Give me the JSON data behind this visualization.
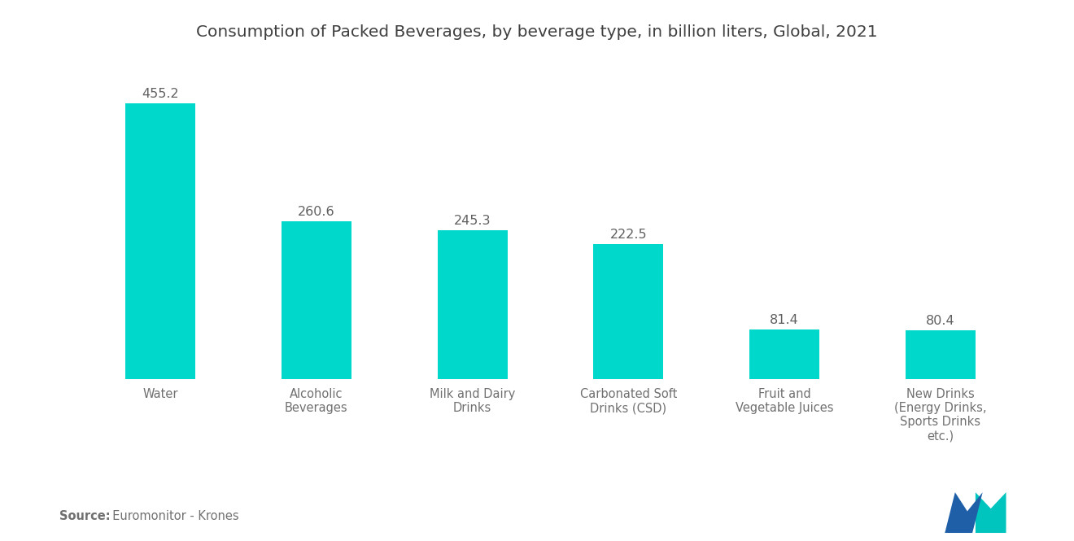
{
  "title": "Consumption of Packed Beverages, by beverage type, in billion liters, Global, 2021",
  "categories": [
    "Water",
    "Alcoholic\nBeverages",
    "Milk and Dairy\nDrinks",
    "Carbonated Soft\nDrinks (CSD)",
    "Fruit and\nVegetable Juices",
    "New Drinks\n(Energy Drinks,\nSports Drinks\netc.)"
  ],
  "values": [
    455.2,
    260.6,
    245.3,
    222.5,
    81.4,
    80.4
  ],
  "bar_color": "#00D8CC",
  "title_color": "#404040",
  "label_color": "#707070",
  "value_color": "#606060",
  "source_bold": "Source:",
  "source_text": "  Euromonitor - Krones",
  "background_color": "#ffffff",
  "ylim": [
    0,
    510
  ],
  "bar_width": 0.45,
  "title_fontsize": 14.5,
  "label_fontsize": 10.5,
  "value_fontsize": 11.5,
  "source_fontsize": 10.5,
  "logo_blue": "#1E5FA8",
  "logo_teal": "#00C4BE"
}
